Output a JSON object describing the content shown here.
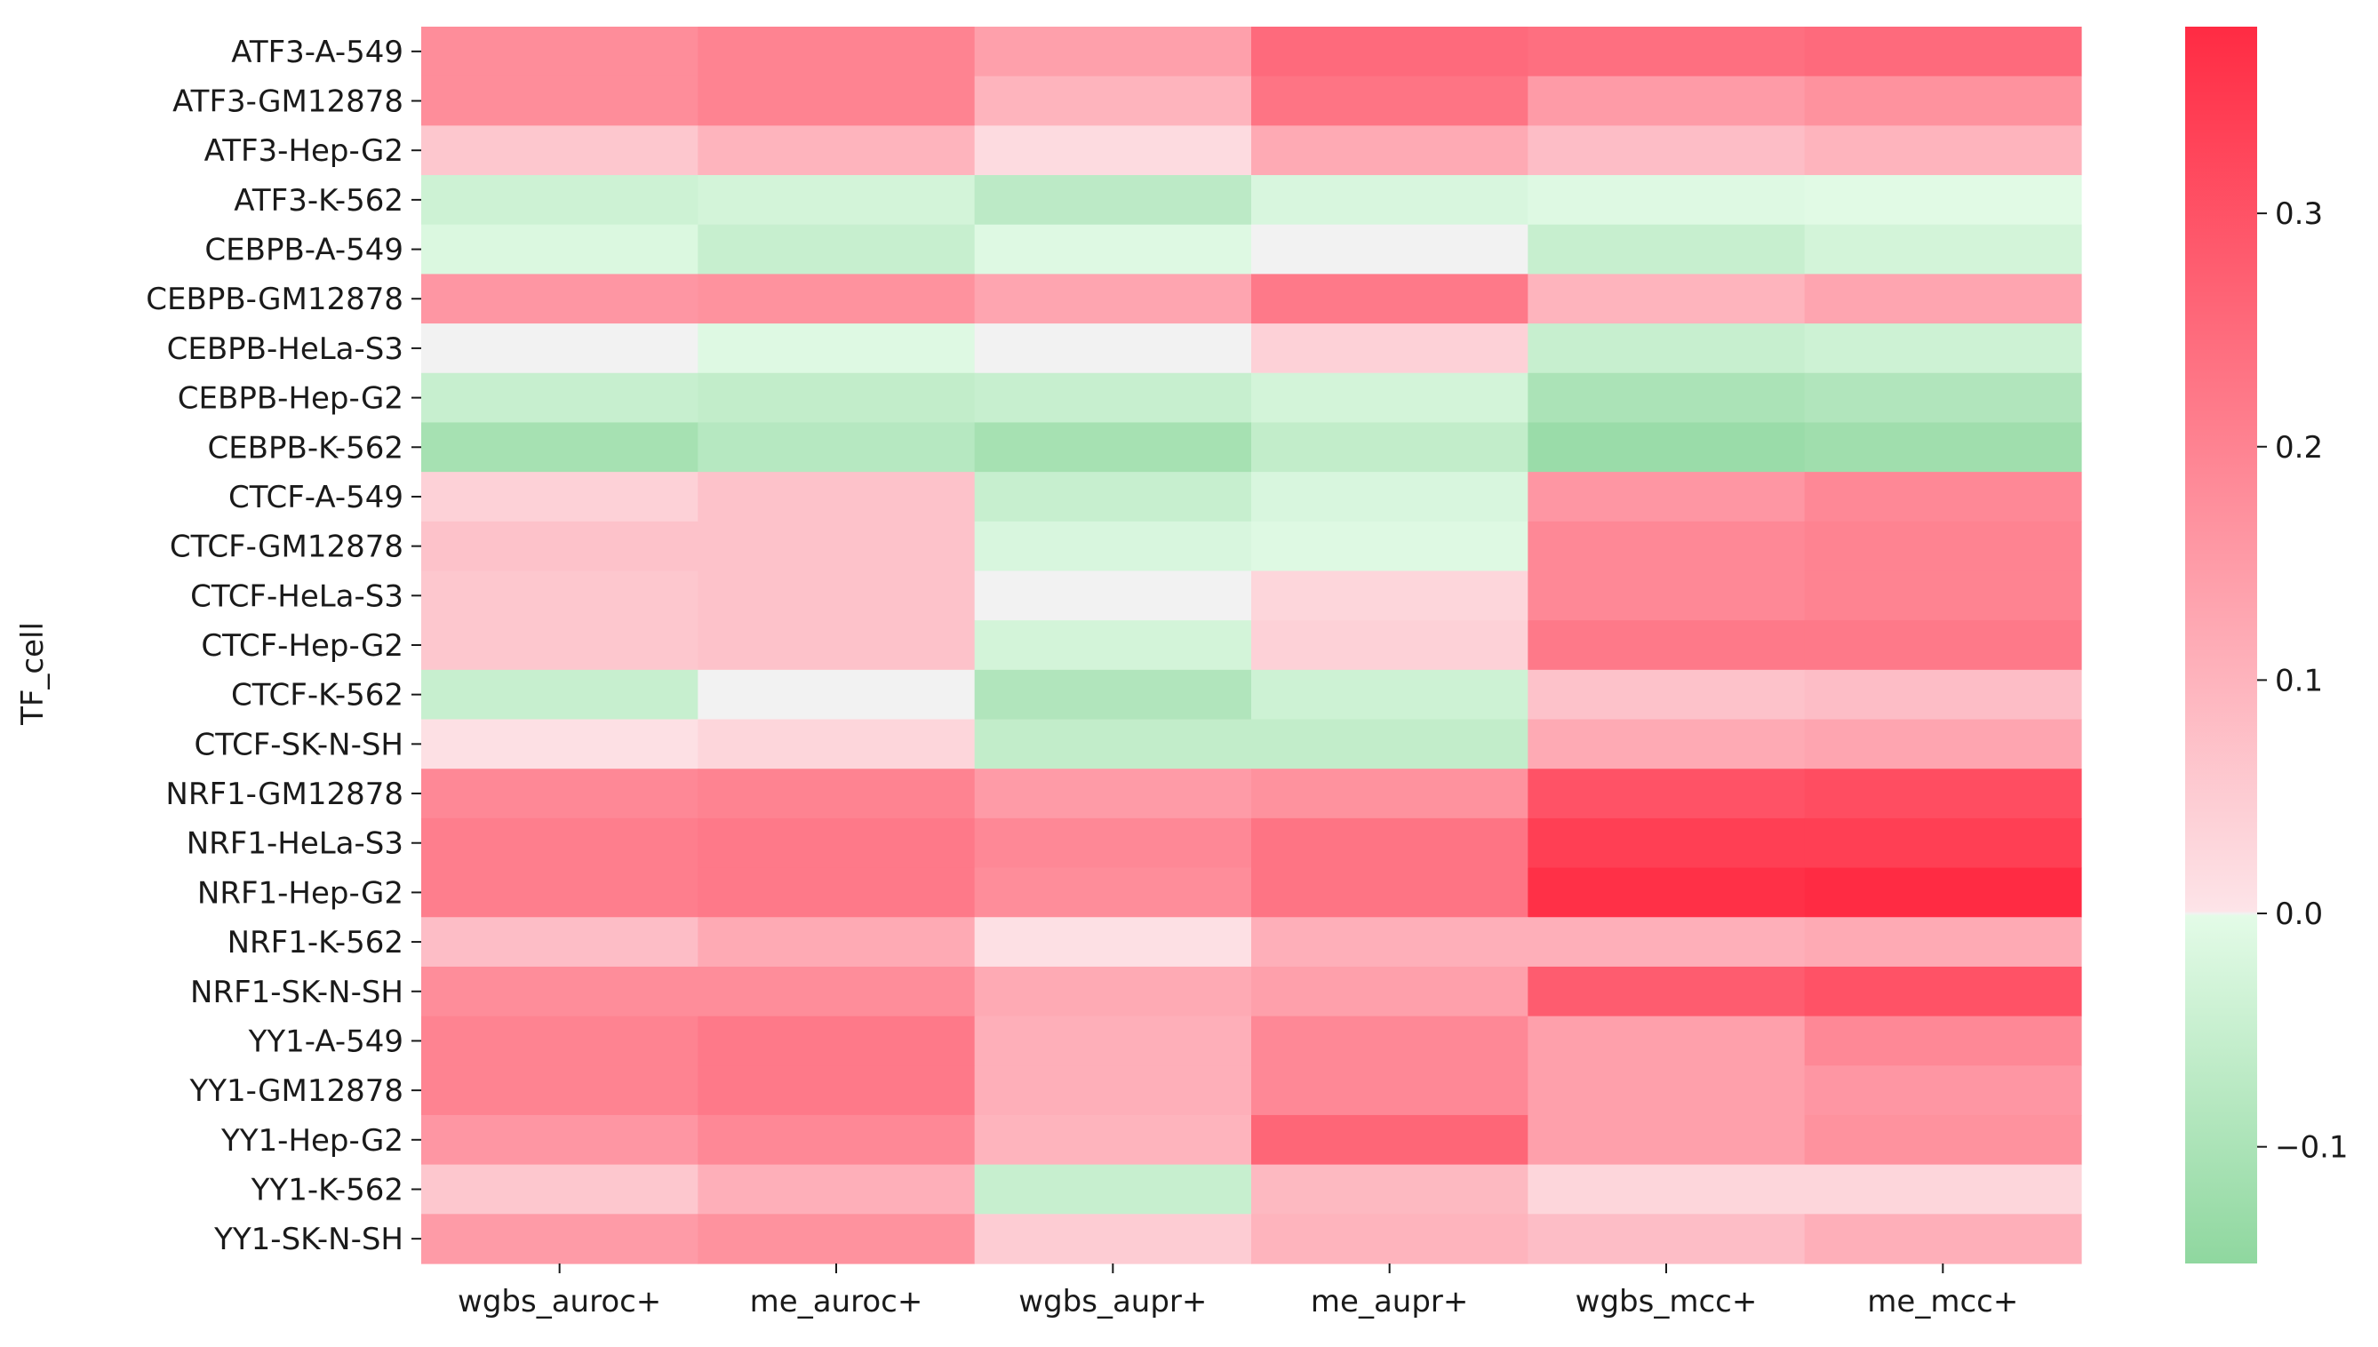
{
  "chart_data": {
    "type": "heatmap",
    "ylabel": "TF_cell",
    "xlabel": "",
    "columns": [
      "wgbs_auroc+",
      "me_auroc+",
      "wgbs_aupr+",
      "me_aupr+",
      "wgbs_mcc+",
      "me_mcc+"
    ],
    "rows": [
      "ATF3-A-549",
      "ATF3-GM12878",
      "ATF3-Hep-G2",
      "ATF3-K-562",
      "CEBPB-A-549",
      "CEBPB-GM12878",
      "CEBPB-HeLa-S3",
      "CEBPB-Hep-G2",
      "CEBPB-K-562",
      "CTCF-A-549",
      "CTCF-GM12878",
      "CTCF-HeLa-S3",
      "CTCF-Hep-G2",
      "CTCF-K-562",
      "CTCF-SK-N-SH",
      "NRF1-GM12878",
      "NRF1-HeLa-S3",
      "NRF1-Hep-G2",
      "NRF1-K-562",
      "NRF1-SK-N-SH",
      "YY1-A-549",
      "YY1-GM12878",
      "YY1-Hep-G2",
      "YY1-K-562",
      "YY1-SK-N-SH"
    ],
    "values": [
      [
        0.18,
        0.2,
        0.14,
        0.25,
        0.24,
        0.25
      ],
      [
        0.18,
        0.2,
        0.1,
        0.23,
        0.15,
        0.17
      ],
      [
        0.06,
        0.1,
        0.02,
        0.12,
        0.08,
        0.1
      ],
      [
        -0.04,
        -0.03,
        -0.07,
        -0.02,
        -0.01,
        -0.005
      ],
      [
        -0.015,
        -0.05,
        -0.01,
        0.0,
        -0.05,
        -0.03
      ],
      [
        0.16,
        0.17,
        0.13,
        0.22,
        0.1,
        0.13
      ],
      [
        0.0,
        -0.01,
        0.0,
        0.04,
        -0.05,
        -0.04
      ],
      [
        -0.05,
        -0.06,
        -0.05,
        -0.03,
        -0.1,
        -0.09
      ],
      [
        -0.11,
        -0.08,
        -0.11,
        -0.06,
        -0.13,
        -0.12
      ],
      [
        0.04,
        0.07,
        -0.05,
        -0.02,
        0.16,
        0.19
      ],
      [
        0.07,
        0.07,
        -0.02,
        -0.01,
        0.19,
        0.2
      ],
      [
        0.06,
        0.07,
        0.0,
        0.03,
        0.19,
        0.2
      ],
      [
        0.06,
        0.07,
        -0.03,
        0.04,
        0.22,
        0.22
      ],
      [
        -0.05,
        0.0,
        -0.09,
        -0.04,
        0.07,
        0.08
      ],
      [
        0.01,
        0.03,
        -0.06,
        -0.06,
        0.12,
        0.13
      ],
      [
        0.19,
        0.2,
        0.15,
        0.17,
        0.3,
        0.31
      ],
      [
        0.21,
        0.22,
        0.19,
        0.23,
        0.34,
        0.34
      ],
      [
        0.21,
        0.22,
        0.18,
        0.23,
        0.37,
        0.38
      ],
      [
        0.08,
        0.12,
        0.01,
        0.11,
        0.11,
        0.12
      ],
      [
        0.18,
        0.18,
        0.12,
        0.14,
        0.28,
        0.3
      ],
      [
        0.2,
        0.22,
        0.11,
        0.19,
        0.14,
        0.19
      ],
      [
        0.2,
        0.22,
        0.11,
        0.19,
        0.14,
        0.16
      ],
      [
        0.16,
        0.19,
        0.1,
        0.26,
        0.14,
        0.17
      ],
      [
        0.06,
        0.11,
        -0.05,
        0.09,
        0.03,
        0.03
      ],
      [
        0.15,
        0.17,
        0.05,
        0.1,
        0.08,
        0.11
      ]
    ],
    "colorbar": {
      "vmin": -0.15,
      "vmax": 0.38,
      "ticks": [
        -0.1,
        0.0,
        0.1,
        0.2,
        0.3
      ],
      "tick_labels": [
        "−0.1",
        "0.0",
        "0.1",
        "0.2",
        "0.3"
      ],
      "colors": {
        "low": "#8fd79f",
        "mid_low": "#e3fbe7",
        "mid": "#f2f2f2",
        "mid_high": "#fde4e8",
        "high": "#ff2b43"
      }
    },
    "grid": false,
    "legend": "colorbar-right"
  }
}
